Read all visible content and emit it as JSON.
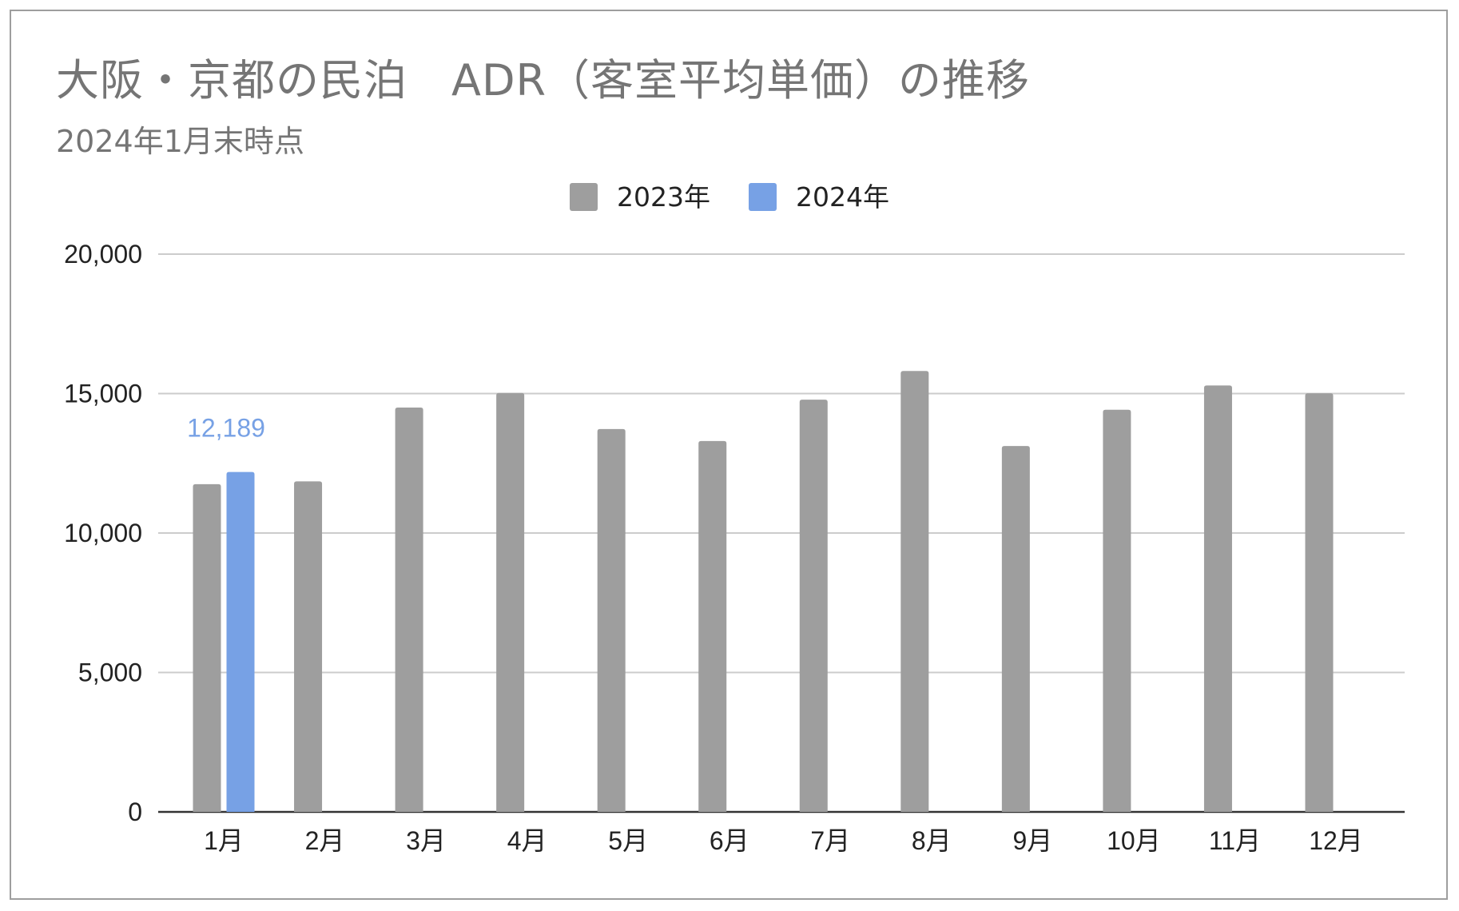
{
  "chart_data": {
    "type": "bar",
    "title": "大阪・京都の民泊　ADR（客室平均単価）の推移",
    "subtitle": "2024年1月末時点",
    "categories": [
      "1月",
      "2月",
      "3月",
      "4月",
      "5月",
      "6月",
      "7月",
      "8月",
      "9月",
      "10月",
      "11月",
      "12月"
    ],
    "series": [
      {
        "name": "2023年",
        "color": "#9e9e9e",
        "values": [
          11750,
          11850,
          14500,
          15020,
          13730,
          13300,
          14780,
          15810,
          13120,
          14420,
          15290,
          15010
        ]
      },
      {
        "name": "2024年",
        "color": "#77a1e5",
        "values": [
          12189,
          null,
          null,
          null,
          null,
          null,
          null,
          null,
          null,
          null,
          null,
          null
        ]
      }
    ],
    "data_labels": [
      {
        "series": 1,
        "index": 0,
        "text": "12,189"
      }
    ],
    "ylim": [
      0,
      20000
    ],
    "yticks": [
      0,
      5000,
      10000,
      15000,
      20000
    ],
    "ytick_labels": [
      "0",
      "5,000",
      "10,000",
      "15,000",
      "20,000"
    ],
    "xlabel": "",
    "ylabel": "",
    "grid": true,
    "legend_position": "top-center"
  }
}
